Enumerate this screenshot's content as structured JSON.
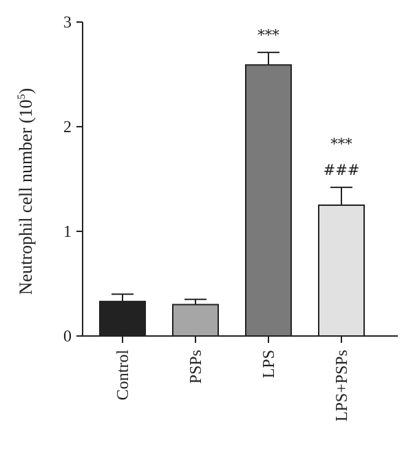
{
  "chart_data": {
    "type": "bar",
    "title": "",
    "xlabel": "",
    "ylabel": "Neutrophil cell number (10",
    "ylabel_sup": "5",
    "ylabel_close": ")",
    "ylim": [
      0,
      3
    ],
    "yticks": [
      {
        "value": 0,
        "label": "0"
      },
      {
        "value": 1,
        "label": "1"
      },
      {
        "value": 2,
        "label": "2"
      },
      {
        "value": 3,
        "label": "3"
      }
    ],
    "categories": [
      "Control",
      "PSPs",
      "LPS",
      "LPS+PSPs"
    ],
    "values": [
      0.33,
      0.3,
      2.59,
      1.25
    ],
    "errors": [
      0.07,
      0.05,
      0.12,
      0.17
    ],
    "bar_colors": [
      "#222222",
      "#a6a6a6",
      "#7a7a7a",
      "#e1e1e1"
    ],
    "annotations": [
      {
        "category": "LPS",
        "lines": [
          "***"
        ]
      },
      {
        "category": "LPS+PSPs",
        "lines": [
          "***",
          "###"
        ]
      }
    ]
  }
}
